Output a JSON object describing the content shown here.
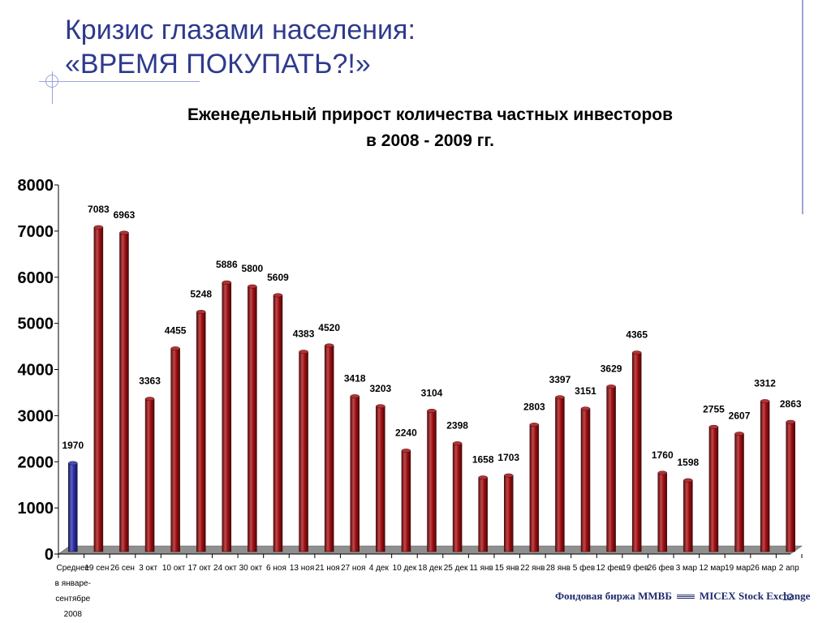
{
  "slide": {
    "title_line1": "Кризис глазами населения:",
    "title_line2": "«ВРЕМЯ ПОКУПАТЬ?!»",
    "logo_left": "Фондовая биржа ММВБ",
    "logo_right": "MICEX Stock Exchange",
    "page_number": "12"
  },
  "colors": {
    "title": "#2e3a8c",
    "bar_first": "#2b2ea8",
    "bar": "#a30f12",
    "floor": "#8f8f8f"
  },
  "chart_data": {
    "type": "bar",
    "title_line1": "Еженедельный прирост количества частных инвесторов",
    "title_line2": "в 2008 - 2009 гг.",
    "categories": [
      "Среднее в январе-сентябре 2008",
      "19 сен",
      "26 сен",
      "3 окт",
      "10 окт",
      "17 окт",
      "24 окт",
      "30 окт",
      "6 ноя",
      "13 ноя",
      "21 ноя",
      "27 ноя",
      "4 дек",
      "10 дек",
      "18 дек",
      "25 дек",
      "11 янв",
      "15 янв",
      "22 янв",
      "28 янв",
      "5 фев",
      "12 фев",
      "19 фев",
      "26 фев",
      "3 мар",
      "12 мар",
      "19 мар",
      "26 мар",
      "2 апр"
    ],
    "first_category_lines": [
      "Среднее",
      "в январе-",
      "сентябре",
      "2008"
    ],
    "values": [
      1970,
      7083,
      6963,
      3363,
      4455,
      5248,
      5886,
      5800,
      5609,
      4383,
      4520,
      3418,
      3203,
      2240,
      3104,
      2398,
      1658,
      1703,
      2803,
      3397,
      3151,
      3629,
      4365,
      1760,
      1598,
      2755,
      2607,
      3312,
      2863
    ],
    "value_labels": [
      "1970",
      "7083",
      "6963",
      "3363",
      "4455",
      "5248",
      "5886",
      "5800",
      "5609",
      "4383",
      "4520",
      "3418",
      "3203",
      "2240",
      "3104",
      "2398",
      "1658",
      "1703",
      "2803",
      "3397",
      "3151",
      "3629",
      "4365",
      "1760",
      "1598",
      "2755",
      "2607",
      "3312",
      "2863"
    ],
    "yticks": [
      "0",
      "1000",
      "2000",
      "3000",
      "4000",
      "5000",
      "6000",
      "7000",
      "8000"
    ],
    "ylim": [
      0,
      8000
    ],
    "grid": false,
    "legend": "none"
  }
}
